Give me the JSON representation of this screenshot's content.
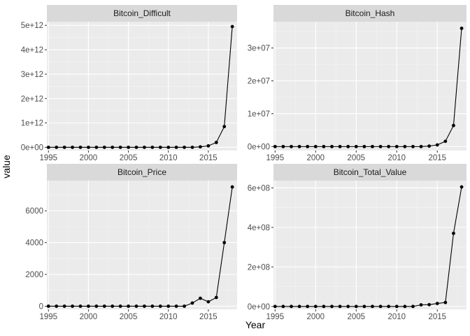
{
  "axes": {
    "x_title": "Year",
    "y_title": "value"
  },
  "theme": {
    "panel_bg": "#EBEBEB",
    "strip_bg": "#D9D9D9",
    "grid_major": "#FFFFFF",
    "grid_minor": "#F5F5F5",
    "line": "#000000",
    "point": "#000000"
  },
  "chart_data": [
    {
      "type": "line",
      "title": "Bitcoin_Difficult",
      "x": [
        1995,
        1996,
        1997,
        1998,
        1999,
        2000,
        2001,
        2002,
        2003,
        2004,
        2005,
        2006,
        2007,
        2008,
        2009,
        2010,
        2011,
        2012,
        2013,
        2014,
        2015,
        2016,
        2017,
        2018
      ],
      "values": [
        0,
        0,
        0,
        0,
        0,
        0,
        0,
        0,
        0,
        0,
        0,
        0,
        0,
        0,
        0,
        0,
        0,
        0,
        0,
        20000000000,
        60000000000,
        200000000000,
        850000000000,
        4950000000000
      ],
      "xlim": [
        1994.8,
        2018.6
      ],
      "ylim": [
        -130000000000,
        5150000000000
      ],
      "x_ticks": [
        1995,
        2000,
        2005,
        2010,
        2015
      ],
      "x_tick_labels": [
        "1995",
        "2000",
        "2005",
        "2010",
        "2015"
      ],
      "y_ticks": [
        0,
        1000000000000,
        2000000000000,
        3000000000000,
        4000000000000,
        5000000000000
      ],
      "y_tick_labels": [
        "0e+00",
        "1e+12",
        "2e+12",
        "3e+12",
        "4e+12",
        "5e+12"
      ]
    },
    {
      "type": "line",
      "title": "Bitcoin_Hash",
      "x": [
        1995,
        1996,
        1997,
        1998,
        1999,
        2000,
        2001,
        2002,
        2003,
        2004,
        2005,
        2006,
        2007,
        2008,
        2009,
        2010,
        2011,
        2012,
        2013,
        2014,
        2015,
        2016,
        2017,
        2018
      ],
      "values": [
        0,
        0,
        0,
        0,
        0,
        0,
        0,
        0,
        0,
        0,
        0,
        0,
        0,
        0,
        0,
        0,
        0,
        0,
        0,
        150000,
        500000,
        1600000,
        6400000,
        36000000
      ],
      "xlim": [
        1994.8,
        2018.6
      ],
      "ylim": [
        -1200000,
        38000000
      ],
      "x_ticks": [
        1995,
        2000,
        2005,
        2010,
        2015
      ],
      "x_tick_labels": [
        "1995",
        "2000",
        "2005",
        "2010",
        "2015"
      ],
      "y_ticks": [
        0,
        10000000,
        20000000,
        30000000
      ],
      "y_tick_labels": [
        "0e+00",
        "1e+07",
        "2e+07",
        "3e+07"
      ]
    },
    {
      "type": "line",
      "title": "Bitcoin_Price",
      "x": [
        1995,
        1996,
        1997,
        1998,
        1999,
        2000,
        2001,
        2002,
        2003,
        2004,
        2005,
        2006,
        2007,
        2008,
        2009,
        2010,
        2011,
        2012,
        2013,
        2014,
        2015,
        2016,
        2017,
        2018
      ],
      "values": [
        0,
        0,
        0,
        0,
        0,
        0,
        0,
        0,
        0,
        0,
        0,
        0,
        0,
        0,
        0,
        0,
        0,
        0,
        200,
        500,
        280,
        550,
        4000,
        7500
      ],
      "xlim": [
        1994.8,
        2018.6
      ],
      "ylim": [
        -200,
        7900
      ],
      "x_ticks": [
        1995,
        2000,
        2005,
        2010,
        2015
      ],
      "x_tick_labels": [
        "1995",
        "2000",
        "2005",
        "2010",
        "2015"
      ],
      "y_ticks": [
        0,
        2000,
        4000,
        6000
      ],
      "y_tick_labels": [
        "0",
        "2000",
        "4000",
        "6000"
      ]
    },
    {
      "type": "line",
      "title": "Bitcoin_Total_Value",
      "x": [
        1995,
        1996,
        1997,
        1998,
        1999,
        2000,
        2001,
        2002,
        2003,
        2004,
        2005,
        2006,
        2007,
        2008,
        2009,
        2010,
        2011,
        2012,
        2013,
        2014,
        2015,
        2016,
        2017,
        2018
      ],
      "values": [
        0,
        0,
        0,
        0,
        0,
        0,
        0,
        0,
        0,
        0,
        0,
        0,
        0,
        0,
        0,
        0,
        0,
        0,
        8000000,
        9000000,
        15000000,
        20000000,
        370000000,
        605000000
      ],
      "xlim": [
        1994.8,
        2018.6
      ],
      "ylim": [
        -15000000,
        637000000
      ],
      "x_ticks": [
        1995,
        2000,
        2005,
        2010,
        2015
      ],
      "x_tick_labels": [
        "1995",
        "2000",
        "2005",
        "2010",
        "2015"
      ],
      "y_ticks": [
        0,
        200000000,
        400000000,
        600000000
      ],
      "y_tick_labels": [
        "0e+00",
        "2e+08",
        "4e+08",
        "6e+08"
      ]
    }
  ]
}
